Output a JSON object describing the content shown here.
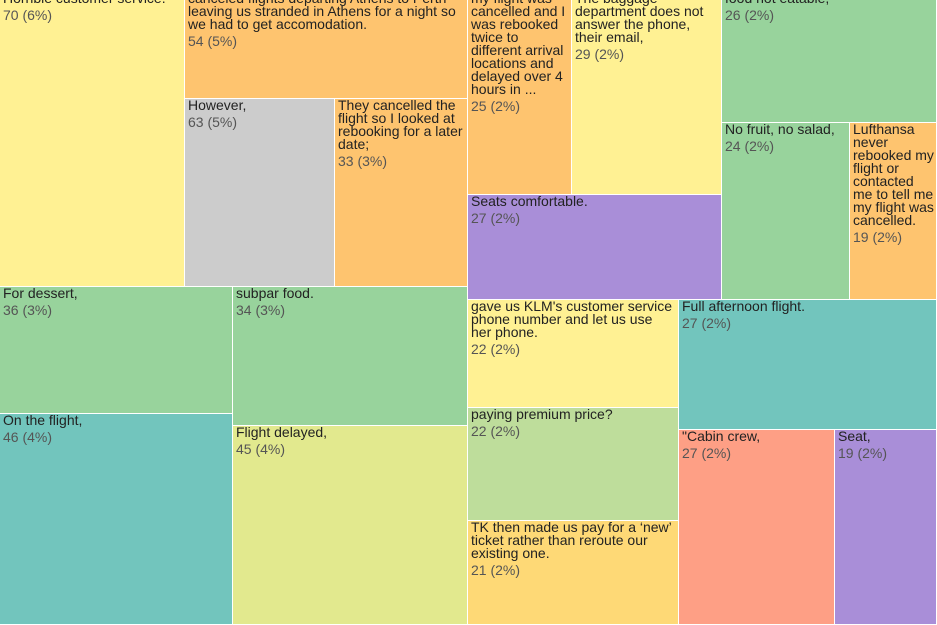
{
  "chart_data": {
    "type": "treemap",
    "colors": {
      "yellow": "#fff193",
      "orange": "#fec46f",
      "gray": "#cccccc",
      "green": "#98d39c",
      "teal": "#72c5bd",
      "purple": "#a98ed8",
      "lime": "#e2e98e",
      "light-green": "#bedd9b",
      "gold": "#fed976",
      "salmon": "#fe9f85"
    },
    "nodes": [
      {
        "text": "Horrible customer service.",
        "value": 70,
        "label": "70 (6%)",
        "color": "yellow"
      },
      {
        "text": "canceled flights departing Athens to Perth leaving us stranded in Athens for a night so we had to get accomodation.",
        "value": 54,
        "label": "54 (5%)",
        "color": "orange"
      },
      {
        "text": "However,",
        "value": 63,
        "label": "63 (5%)",
        "color": "gray"
      },
      {
        "text": "They cancelled the flight so I looked at rebooking for a later date;",
        "value": 33,
        "label": "33 (3%)",
        "color": "orange"
      },
      {
        "text": "my flight was cancelled and I was rebooked twice to different arrival locations and delayed over 4 hours in ...",
        "value": 25,
        "label": "25 (2%)",
        "color": "orange"
      },
      {
        "text": "The baggage department does not answer the phone, their email,",
        "value": 29,
        "label": "29 (2%)",
        "color": "yellow"
      },
      {
        "text": "food not eatable,",
        "value": 26,
        "label": "26 (2%)",
        "color": "green"
      },
      {
        "text": "No fruit, no salad,",
        "value": 24,
        "label": "24 (2%)",
        "color": "green"
      },
      {
        "text": "Lufthansa never rebooked my flight or contacted me to tell me my flight was cancelled.",
        "value": 19,
        "label": "19 (2%)",
        "color": "orange"
      },
      {
        "text": "Seats comfortable.",
        "value": 27,
        "label": "27 (2%)",
        "color": "purple"
      },
      {
        "text": "For dessert,",
        "value": 36,
        "label": "36 (3%)",
        "color": "green"
      },
      {
        "text": "subpar food.",
        "value": 34,
        "label": "34 (3%)",
        "color": "green"
      },
      {
        "text": "gave us KLM's customer service phone number and let us use her phone.",
        "value": 22,
        "label": "22 (2%)",
        "color": "yellow"
      },
      {
        "text": "Full afternoon flight.",
        "value": 27,
        "label": "27 (2%)",
        "color": "teal"
      },
      {
        "text": "On the flight,",
        "value": 46,
        "label": "46 (4%)",
        "color": "teal"
      },
      {
        "text": "Flight delayed,",
        "value": 45,
        "label": "45 (4%)",
        "color": "lime"
      },
      {
        "text": "paying premium price?",
        "value": 22,
        "label": "22 (2%)",
        "color": "light-green"
      },
      {
        "text": "\"Cabin crew,",
        "value": 27,
        "label": "27 (2%)",
        "color": "salmon"
      },
      {
        "text": "Seat,",
        "value": 19,
        "label": "19 (2%)",
        "color": "purple"
      },
      {
        "text": "TK then made us pay for a ‘new’ ticket rather than reroute our existing one.",
        "value": 21,
        "label": "21 (2%)",
        "color": "gold"
      }
    ]
  }
}
